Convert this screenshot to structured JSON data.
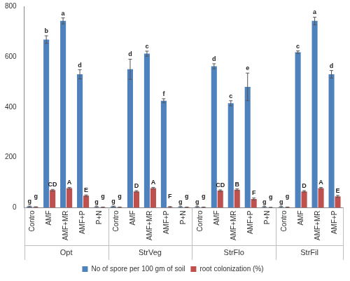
{
  "chart_data": {
    "type": "bar",
    "categories": [
      "Contro",
      "AMF",
      "AMF+MR",
      "AMF+P",
      "P+N",
      "Contro",
      "AMF",
      "AMF+MR",
      "AMF+P",
      "P+N",
      "Contro",
      "AMF",
      "AMF+MR",
      "AMF+P",
      "P+N",
      "Contro",
      "AMF",
      "AMF+MR",
      "AMF+P"
    ],
    "groups": [
      {
        "label": "Opt",
        "count": 5
      },
      {
        "label": "StrVeg",
        "count": 5
      },
      {
        "label": "StrFlo",
        "count": 5
      },
      {
        "label": "StrFil",
        "count": 4
      }
    ],
    "series": [
      {
        "name": "No of spore per 100 gm of soil",
        "color": "#4f81bd",
        "values": [
          5,
          668,
          742,
          530,
          3,
          5,
          550,
          612,
          425,
          3,
          3,
          562,
          415,
          480,
          3,
          3,
          618,
          742,
          530
        ],
        "errors": [
          2,
          15,
          12,
          18,
          2,
          2,
          40,
          10,
          8,
          2,
          2,
          10,
          10,
          55,
          2,
          2,
          5,
          15,
          15
        ],
        "letters": [
          "g",
          "b",
          "a",
          "d",
          "g",
          "g",
          "d",
          "c",
          "f",
          "g",
          "g",
          "d",
          "c",
          "e",
          "g",
          "g",
          "c",
          "a",
          "d"
        ]
      },
      {
        "name": "root colonization (%)",
        "color": "#c0504d",
        "values": [
          3,
          70,
          78,
          48,
          2,
          2,
          65,
          78,
          3,
          2,
          2,
          68,
          72,
          35,
          1,
          2,
          65,
          78,
          45
        ],
        "errors": [
          1,
          3,
          3,
          3,
          1,
          1,
          3,
          3,
          2,
          1,
          1,
          3,
          3,
          4,
          1,
          1,
          3,
          3,
          4
        ],
        "letters": [
          "g",
          "CD",
          "A",
          "E",
          "g",
          "g",
          "D",
          "A",
          "F",
          "g",
          "g",
          "CD",
          "B",
          "F",
          "g",
          "g",
          "D",
          "A",
          "E"
        ]
      }
    ],
    "ylim": [
      0,
      800
    ],
    "yticks": [
      0,
      200,
      400,
      600,
      800
    ],
    "grid": false,
    "legend": "bottom"
  }
}
